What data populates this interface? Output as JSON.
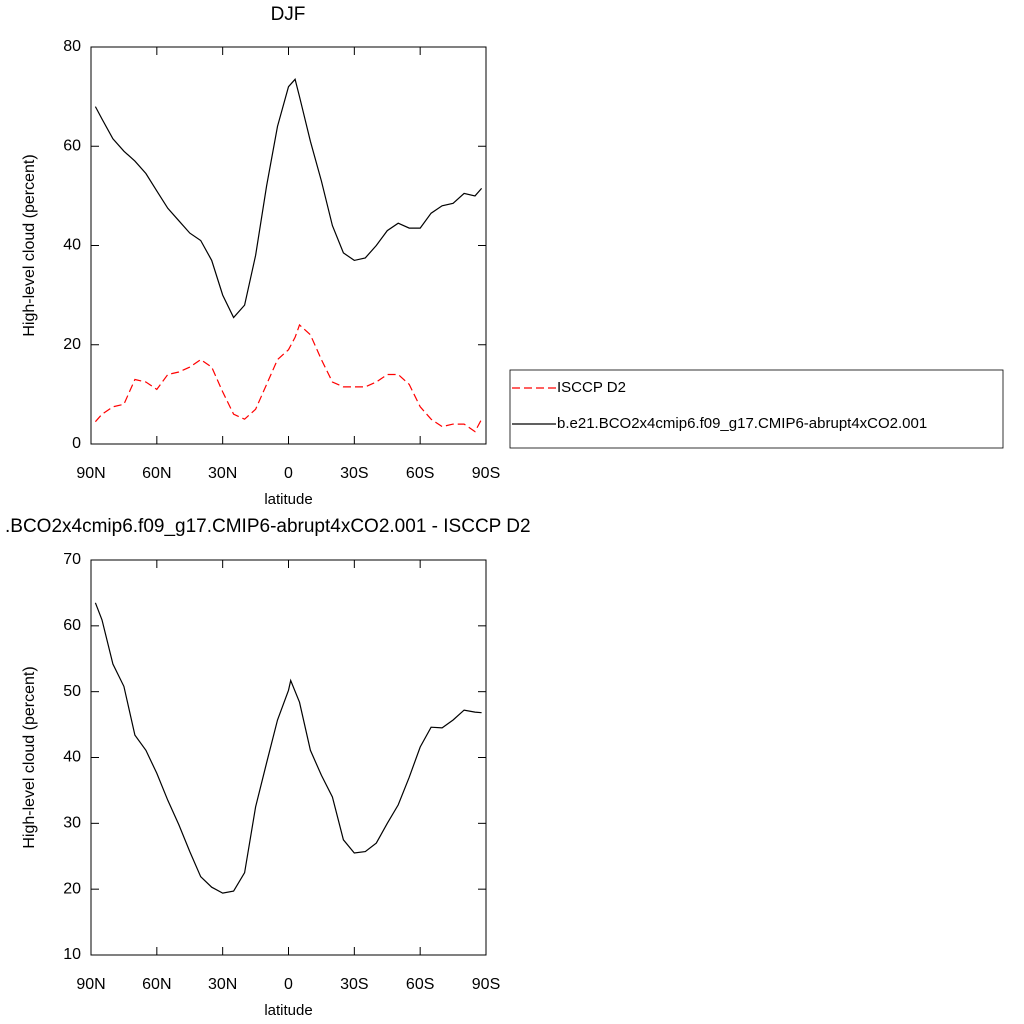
{
  "chart_data": [
    {
      "type": "line",
      "title": "DJF",
      "xlabel": "latitude",
      "ylabel": "High-level cloud (percent)",
      "x": [
        88,
        85,
        80,
        75,
        70,
        65,
        60,
        55,
        50,
        45,
        40,
        35,
        30,
        25,
        20,
        15,
        10,
        5,
        0,
        -3,
        -5,
        -10,
        -15,
        -20,
        -25,
        -30,
        -35,
        -40,
        -45,
        -50,
        -55,
        -60,
        -65,
        -70,
        -75,
        -80,
        -85,
        -88
      ],
      "series": [
        {
          "name": "ISCCP D2",
          "color": "#ff0000",
          "dash": true,
          "values": [
            4.5,
            6,
            7.5,
            8,
            13,
            12.5,
            11,
            14,
            14.5,
            15.5,
            17,
            15.5,
            10.5,
            6,
            5,
            7,
            12,
            17,
            19,
            21.5,
            24,
            22,
            17,
            12.5,
            11.5,
            11.5,
            11.5,
            12.5,
            14,
            14,
            12,
            7.5,
            5,
            3.5,
            4,
            4,
            2.5,
            5
          ]
        },
        {
          "name": "b.e21.BCO2x4cmip6.f09_g17.CMIP6-abrupt4xCO2.001",
          "color": "#000000",
          "dash": false,
          "values": [
            68,
            65.5,
            61.5,
            59,
            57,
            54.5,
            51,
            47.5,
            45,
            42.5,
            41,
            37,
            30,
            25.5,
            28,
            38,
            52,
            64,
            72,
            73.5,
            70,
            61,
            53,
            44,
            38.5,
            37,
            37.5,
            40,
            43,
            44.5,
            43.5,
            43.5,
            46.5,
            48,
            48.5,
            50.5,
            50,
            51.5
          ]
        }
      ],
      "xlim": [
        90,
        -90
      ],
      "xticks": [
        {
          "value": 90,
          "label": "90N"
        },
        {
          "value": 60,
          "label": "60N"
        },
        {
          "value": 30,
          "label": "30N"
        },
        0,
        {
          "value": -30,
          "label": "30S"
        },
        {
          "value": -60,
          "label": "60S"
        },
        {
          "value": -90,
          "label": "90S"
        }
      ],
      "ylim": [
        0,
        80
      ],
      "yticks": [
        0,
        20,
        40,
        60,
        80
      ],
      "legend": "right"
    },
    {
      "type": "line",
      "title": ".BCO2x4cmip6.f09_g17.CMIP6-abrupt4xCO2.001 - ISCCP D2",
      "xlabel": "latitude",
      "ylabel": "High-level cloud (percent)",
      "x": [
        88,
        85,
        80,
        75,
        70,
        65,
        60,
        55,
        50,
        45,
        40,
        35,
        30,
        25,
        20,
        15,
        10,
        5,
        0,
        -1,
        -5,
        -10,
        -15,
        -20,
        -25,
        -30,
        -35,
        -40,
        -45,
        -50,
        -55,
        -60,
        -65,
        -70,
        -75,
        -80,
        -85,
        -88
      ],
      "series": [
        {
          "color": "#000000",
          "dash": false,
          "values": [
            63.5,
            60.9,
            54.2,
            50.8,
            43.4,
            41.1,
            37.6,
            33.5,
            29.8,
            25.7,
            21.9,
            20.3,
            19.4,
            19.7,
            22.5,
            32.5,
            39.2,
            45.7,
            50.2,
            51.7,
            48.4,
            41.1,
            37.3,
            34,
            27.5,
            25.5,
            25.7,
            27,
            30,
            32.8,
            37,
            41.6,
            44.6,
            44.5,
            45.7,
            47.2,
            46.9,
            46.8
          ]
        }
      ],
      "xlim": [
        90,
        -90
      ],
      "xticks": [
        {
          "value": 90,
          "label": "90N"
        },
        {
          "value": 60,
          "label": "60N"
        },
        {
          "value": 30,
          "label": "30N"
        },
        0,
        {
          "value": -30,
          "label": "30S"
        },
        {
          "value": -60,
          "label": "60S"
        },
        {
          "value": -90,
          "label": "90S"
        }
      ],
      "ylim": [
        10,
        70
      ],
      "yticks": [
        10,
        20,
        30,
        40,
        50,
        60,
        70
      ]
    }
  ]
}
